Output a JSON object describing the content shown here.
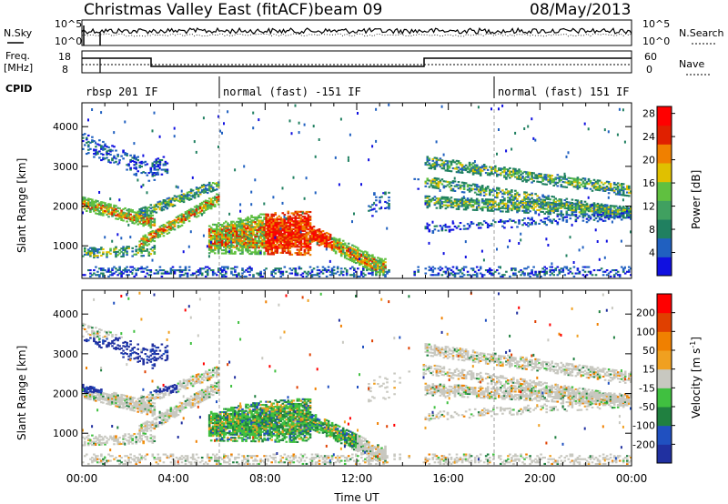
{
  "header": {
    "title": "Christmas Valley East (fitACF)",
    "beam": "beam 09",
    "date": "08/May/2013"
  },
  "summary": {
    "nsky_label": "N.Sky",
    "nsearch_label": "N.Search",
    "freq_label_1": "Freq.",
    "freq_label_2": "[MHz]",
    "nave_label": "Nave",
    "cpid_label": "CPID",
    "left_ticks_top": [
      "10^5",
      "10^0"
    ],
    "right_ticks_top": [
      "10^5",
      "10^0"
    ],
    "left_ticks_freq": [
      "18",
      "8"
    ],
    "right_ticks_freq": [
      "60",
      "0"
    ]
  },
  "cpid": {
    "segments": [
      {
        "label": "rbsp 201 IF",
        "start_h": 0.0
      },
      {
        "label": "normal (fast) -151 IF",
        "start_h": 6.0
      },
      {
        "label": "normal (fast) 151 IF",
        "start_h": 18.0
      }
    ]
  },
  "chart_data": [
    {
      "type": "heatmap",
      "title": "Power",
      "ylabel": "Slant Range [km]",
      "xlabel": "Time UT",
      "x_ticks": [
        "00:00",
        "04:00",
        "08:00",
        "12:00",
        "16:00",
        "20:00",
        "00:00"
      ],
      "xlim_hours": [
        0,
        24
      ],
      "y_ticks": [
        "1000",
        "2000",
        "3000",
        "4000"
      ],
      "ylim": [
        180,
        4600
      ],
      "colorbar": {
        "label": "Power [dB]",
        "ticks": [
          "4",
          "8",
          "12",
          "16",
          "20",
          "24",
          "28"
        ],
        "range": [
          0,
          30
        ],
        "colors": [
          "#1010e0",
          "#2060c0",
          "#208060",
          "#40a060",
          "#60c040",
          "#e0c000",
          "#f08000",
          "#e02000",
          "#ff0000"
        ]
      },
      "features": [
        {
          "name": "near range band",
          "t": [
            0,
            24
          ],
          "r": [
            220,
            450
          ]
        },
        {
          "name": "early band",
          "t": [
            0,
            3
          ],
          "r": [
            1900,
            2300
          ]
        },
        {
          "name": "evening band",
          "t": [
            3,
            6
          ],
          "r": [
            1100,
            2700
          ]
        },
        {
          "name": "afternoon echo",
          "t": [
            6,
            13.3
          ],
          "r": [
            600,
            1700
          ]
        },
        {
          "name": "night bands",
          "t": [
            15,
            24
          ],
          "r": [
            1700,
            3400
          ]
        }
      ]
    },
    {
      "type": "heatmap",
      "title": "Velocity",
      "ylabel": "Slant Range [km]",
      "xlabel": "Time UT",
      "x_ticks": [
        "00:00",
        "04:00",
        "08:00",
        "12:00",
        "16:00",
        "20:00",
        "00:00"
      ],
      "xlim_hours": [
        0,
        24
      ],
      "y_ticks": [
        "1000",
        "2000",
        "3000",
        "4000"
      ],
      "ylim": [
        180,
        4600
      ],
      "colorbar": {
        "label": "Velocity [m s^-1]",
        "ticks": [
          "200",
          "100",
          "50",
          "15",
          "-15",
          "-50",
          "-100",
          "-200"
        ],
        "range": [
          -250,
          250
        ],
        "colors": [
          "#2030a0",
          "#2050c0",
          "#208040",
          "#40c040",
          "#c8c8c0",
          "#f0a020",
          "#f08000",
          "#e04000",
          "#ff0000"
        ]
      }
    }
  ],
  "axis": {
    "time_label": "Time UT"
  }
}
